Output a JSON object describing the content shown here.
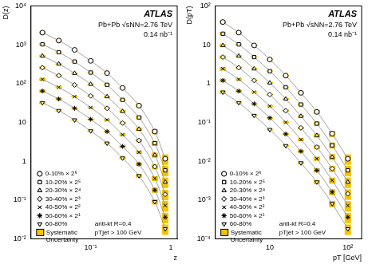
{
  "chart_data": [
    {
      "type": "scatter",
      "experiment": "ATLAS",
      "annotations": [
        "Pb+Pb √sNN=2.76 TeV",
        "0.14 nb⁻¹",
        "anti-kt R=0.4",
        "pTjet > 100 GeV"
      ],
      "x_label": "z",
      "y_label": "D(z)",
      "log": true,
      "grid": false,
      "legend": "lower left",
      "x": [
        0.025,
        0.04,
        0.063,
        0.1,
        0.16,
        0.25,
        0.4,
        0.63,
        0.85
      ],
      "xlim": [
        0.018,
        1.2
      ],
      "xticks": [
        {
          "value": 0.1,
          "label": "10⁻¹"
        },
        1
      ],
      "ylim": [
        0.01,
        10000
      ],
      "yticks": [
        {
          "value": 0.01,
          "label": "10⁻²"
        },
        {
          "value": 0.1,
          "label": "10⁻¹"
        },
        1,
        10,
        {
          "value": 100,
          "label": "10²"
        },
        {
          "value": 1000,
          "label": "10³"
        },
        {
          "value": 10000,
          "label": "10⁴"
        }
      ],
      "systematic": {
        "label": "Systematic Uncertainty",
        "color": "#f5c400",
        "fraction": [
          0.08,
          0.06,
          0.05,
          0.05,
          0.06,
          0.08,
          0.1,
          0.15,
          0.3
        ]
      },
      "series": [
        {
          "name": "0-10% × 2⁶",
          "color": "#000000",
          "marker": "circle",
          "values": [
            2048,
            1280,
            736,
            384,
            186,
            77,
            27,
            5.8,
            1.15
          ]
        },
        {
          "name": "10-20% × 2⁵",
          "color": "#000000",
          "marker": "square",
          "values": [
            1024,
            640,
            368,
            192,
            93,
            38,
            13.4,
            2.9,
            0.58
          ]
        },
        {
          "name": "20-30% × 2⁴",
          "color": "#000000",
          "marker": "triangle",
          "values": [
            512,
            320,
            184,
            96,
            46,
            19.2,
            6.7,
            1.44,
            0.29
          ]
        },
        {
          "name": "30-40% × 2³",
          "color": "#000000",
          "marker": "diamond",
          "values": [
            256,
            160,
            92,
            48,
            23,
            9.6,
            3.4,
            0.72,
            0.14
          ]
        },
        {
          "name": "40-50% × 2²",
          "color": "#000000",
          "marker": "cross",
          "values": [
            128,
            80,
            46,
            24,
            11.6,
            4.8,
            1.7,
            0.36,
            0.072
          ]
        },
        {
          "name": "50-60% × 2¹",
          "color": "#000000",
          "marker": "star",
          "values": [
            64,
            40,
            23,
            12,
            5.8,
            2.4,
            0.84,
            0.18,
            0.036
          ]
        },
        {
          "name": "60-80%",
          "color": "#000000",
          "marker": "triangle-down",
          "values": [
            32,
            20,
            11.5,
            6,
            2.9,
            1.2,
            0.42,
            0.09,
            0.018
          ]
        }
      ]
    },
    {
      "type": "scatter",
      "experiment": "ATLAS",
      "annotations": [
        "Pb+Pb √sNN=2.76 TeV",
        "0.14 nb⁻¹",
        "anti-kt R=0.4",
        "pTjet > 100 GeV"
      ],
      "x_label": "pT [GeV]",
      "y_label": "D(pT)",
      "log": true,
      "grid": false,
      "legend": "lower left",
      "x": [
        2.5,
        4,
        6.3,
        10,
        16,
        25,
        40,
        63,
        100
      ],
      "xlim": [
        2,
        150
      ],
      "xticks": [
        10,
        {
          "value": 100,
          "label": "10²"
        }
      ],
      "ylim": [
        0.0001,
        100
      ],
      "yticks": [
        {
          "value": 0.0001,
          "label": "10⁻⁴"
        },
        {
          "value": 0.001,
          "label": "10⁻³"
        },
        {
          "value": 0.01,
          "label": "10⁻²"
        },
        {
          "value": 0.1,
          "label": "10⁻¹"
        },
        1,
        10,
        {
          "value": 100,
          "label": "10²"
        }
      ],
      "systematic": {
        "label": "Systematic Uncertainty",
        "color": "#f5c400",
        "fraction": [
          0.1,
          0.06,
          0.05,
          0.05,
          0.06,
          0.08,
          0.12,
          0.18,
          0.3
        ]
      },
      "series": [
        {
          "name": "0-10% × 2⁶",
          "color": "#000000",
          "marker": "circle",
          "values": [
            38.4,
            20.5,
            9.6,
            4.16,
            1.6,
            0.576,
            0.186,
            0.0512,
            0.0115
          ]
        },
        {
          "name": "10-20% × 2⁵",
          "color": "#000000",
          "marker": "square",
          "values": [
            19.2,
            10.2,
            4.8,
            2.08,
            0.8,
            0.288,
            0.093,
            0.0256,
            0.0058
          ]
        },
        {
          "name": "20-30% × 2⁴",
          "color": "#000000",
          "marker": "triangle",
          "values": [
            9.6,
            5.1,
            2.4,
            1.04,
            0.4,
            0.144,
            0.046,
            0.0128,
            0.0029
          ]
        },
        {
          "name": "30-40% × 2³",
          "color": "#000000",
          "marker": "diamond",
          "values": [
            4.8,
            2.56,
            1.2,
            0.52,
            0.2,
            0.072,
            0.023,
            0.0064,
            0.00144
          ]
        },
        {
          "name": "40-50% × 2²",
          "color": "#000000",
          "marker": "cross",
          "values": [
            2.4,
            1.28,
            0.6,
            0.26,
            0.1,
            0.036,
            0.0116,
            0.0032,
            0.00072
          ]
        },
        {
          "name": "50-60% × 2¹",
          "color": "#000000",
          "marker": "star",
          "values": [
            1.2,
            0.64,
            0.3,
            0.13,
            0.05,
            0.018,
            0.0058,
            0.0016,
            0.00036
          ]
        },
        {
          "name": "60-80%",
          "color": "#000000",
          "marker": "triangle-down",
          "values": [
            0.6,
            0.32,
            0.15,
            0.065,
            0.025,
            0.009,
            0.0029,
            0.0008,
            0.00018
          ]
        }
      ]
    }
  ]
}
